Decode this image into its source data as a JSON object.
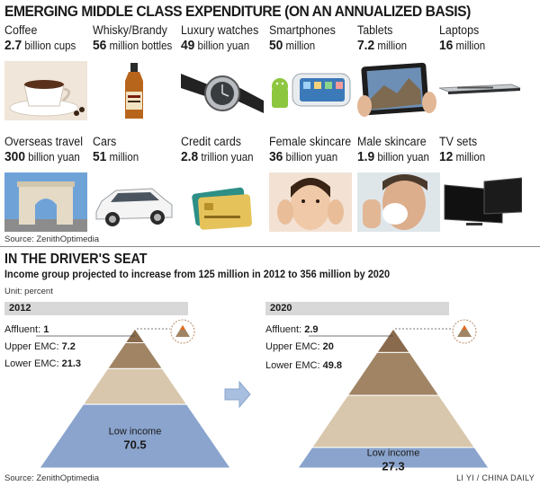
{
  "title": "EMERGING MIDDLE CLASS EXPENDITURE (ON AN ANNUALIZED BASIS)",
  "items": [
    {
      "name": "Coffee",
      "value": "2.7",
      "unit": "billion cups",
      "icon": "coffee-cup-icon"
    },
    {
      "name": "Whisky/Brandy",
      "value": "56",
      "unit": "million bottles",
      "icon": "whisky-bottle-icon"
    },
    {
      "name": "Luxury watches",
      "value": "49",
      "unit": "billion yuan",
      "icon": "watch-icon"
    },
    {
      "name": "Smartphones",
      "value": "50",
      "unit": "million",
      "icon": "smartphone-icon"
    },
    {
      "name": "Tablets",
      "value": "7.2",
      "unit": "million",
      "icon": "tablet-icon"
    },
    {
      "name": "Laptops",
      "value": "16",
      "unit": "million",
      "icon": "laptop-icon"
    },
    {
      "name": "Overseas travel",
      "value": "300",
      "unit": "billion yuan",
      "icon": "arc-de-triomphe-icon"
    },
    {
      "name": "Cars",
      "value": "51",
      "unit": "million",
      "icon": "car-icon"
    },
    {
      "name": "Credit cards",
      "value": "2.8",
      "unit": "trillion yuan",
      "icon": "credit-card-icon"
    },
    {
      "name": "Female skincare",
      "value": "36",
      "unit": "billion yuan",
      "icon": "female-face-icon"
    },
    {
      "name": "Male skincare",
      "value": "1.9",
      "unit": "billion yuan",
      "icon": "male-face-icon"
    },
    {
      "name": "TV sets",
      "value": "12",
      "unit": "million",
      "icon": "tv-icon"
    }
  ],
  "source1": "Source: ZenithOptimedia",
  "section_title": "IN THE DRIVER'S SEAT",
  "subtitle": "Income group projected to increase from 125 million in 2012 to 356 million by 2020",
  "unit": "Unit: percent",
  "source2": "Source: ZenithOptimedia",
  "credit": "LI YI / CHINA DAILY",
  "colors": {
    "affluent": "#8a6a4c",
    "upper": "#a08464",
    "lower": "#d8c7ac",
    "low": "#8aa4cd",
    "arrow": "#a9bfe0",
    "badge_orange": "#e46a1e"
  },
  "chart_data": [
    {
      "type": "pyramid",
      "title": "2012",
      "unit": "percent",
      "segments": [
        {
          "label": "Affluent",
          "value": 1
        },
        {
          "label": "Upper EMC",
          "value": 7.2
        },
        {
          "label": "Lower EMC",
          "value": 21.3
        },
        {
          "label": "Low income",
          "value": 70.5
        }
      ]
    },
    {
      "type": "pyramid",
      "title": "2020",
      "unit": "percent",
      "segments": [
        {
          "label": "Affluent",
          "value": 2.9
        },
        {
          "label": "Upper EMC",
          "value": 20
        },
        {
          "label": "Lower EMC",
          "value": 49.8
        },
        {
          "label": "Low income",
          "value": 27.3
        }
      ]
    }
  ]
}
